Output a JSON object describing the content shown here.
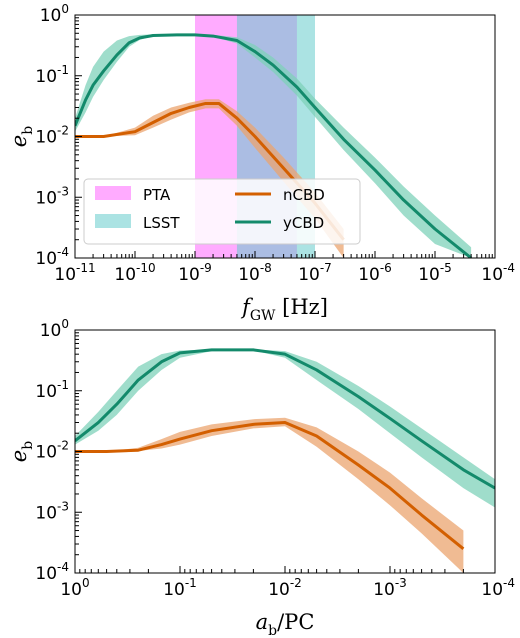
{
  "colors": {
    "nCBD": "#d35f00",
    "nCBD_band": "#eba46f",
    "yCBD": "#138a6b",
    "yCBD_band": "#7fd1b9",
    "PTA": "#ff66ff",
    "LSST": "#66cccc",
    "overlap": "#9fa7e0"
  },
  "chart_data": [
    {
      "type": "line",
      "xscale": "log",
      "yscale": "log",
      "xlabel": "f_GW [Hz]",
      "ylabel": "e_b",
      "xlim": [
        1e-11,
        0.0001
      ],
      "ylim": [
        0.0001,
        1
      ],
      "x_ticks": [
        "10^-11",
        "10^-10",
        "10^-9",
        "10^-8",
        "10^-7",
        "10^-6",
        "10^-5",
        "10^-4"
      ],
      "y_ticks": [
        "10^0",
        "10^-1",
        "10^-2",
        "10^-3",
        "10^-4"
      ],
      "legend": {
        "placement": "lower-left",
        "entries": [
          "PTA",
          "LSST",
          "nCBD",
          "yCBD"
        ]
      },
      "bands": [
        {
          "name": "PTA",
          "x_range": [
            1e-09,
            5e-08
          ]
        },
        {
          "name": "LSST",
          "x_range": [
            5e-09,
            1e-07
          ]
        }
      ],
      "series": [
        {
          "name": "nCBD",
          "x": [
            1e-11,
            3e-11,
            1e-10,
            2e-10,
            4e-10,
            8e-10,
            1.5e-09,
            2.5e-09,
            5e-09,
            1e-08,
            3e-08,
            1e-07,
            3e-07
          ],
          "y": [
            0.01,
            0.01,
            0.012,
            0.017,
            0.024,
            0.03,
            0.035,
            0.035,
            0.02,
            0.01,
            0.003,
            0.0008,
            0.0002
          ],
          "low": [
            0.01,
            0.01,
            0.0105,
            0.014,
            0.019,
            0.025,
            0.029,
            0.029,
            0.015,
            0.0065,
            0.0018,
            0.00045,
            0.0001
          ],
          "high": [
            0.01,
            0.01,
            0.014,
            0.022,
            0.03,
            0.036,
            0.041,
            0.041,
            0.026,
            0.014,
            0.0045,
            0.0012,
            0.0003
          ]
        },
        {
          "name": "yCBD",
          "x": [
            1e-11,
            1.5e-11,
            2e-11,
            3e-11,
            5e-11,
            8e-11,
            1.2e-10,
            2e-10,
            5e-10,
            1e-09,
            2e-09,
            5e-09,
            1e-08,
            2e-08,
            5e-08,
            1e-07,
            3e-07,
            1e-06,
            3e-06,
            1e-05,
            4e-05
          ],
          "y": [
            0.015,
            0.04,
            0.07,
            0.12,
            0.22,
            0.35,
            0.42,
            0.46,
            0.47,
            0.47,
            0.45,
            0.38,
            0.25,
            0.15,
            0.065,
            0.03,
            0.009,
            0.0028,
            0.0009,
            0.0003,
            0.0001
          ],
          "low": [
            0.012,
            0.025,
            0.045,
            0.085,
            0.17,
            0.3,
            0.39,
            0.45,
            0.47,
            0.47,
            0.44,
            0.34,
            0.2,
            0.115,
            0.047,
            0.021,
            0.006,
            0.0017,
            0.0005,
            0.00017,
            0.0001
          ],
          "high": [
            0.02,
            0.07,
            0.14,
            0.25,
            0.38,
            0.45,
            0.47,
            0.48,
            0.48,
            0.48,
            0.47,
            0.43,
            0.32,
            0.2,
            0.09,
            0.042,
            0.014,
            0.0045,
            0.0015,
            0.0005,
            0.00015
          ]
        }
      ]
    },
    {
      "type": "line",
      "xscale": "log",
      "yscale": "log",
      "x_reversed": true,
      "xlabel": "a_b/PC",
      "ylabel": "e_b",
      "xlim": [
        1,
        0.0001
      ],
      "ylim": [
        0.0001,
        1
      ],
      "x_ticks": [
        "10^0",
        "10^-1",
        "10^-2",
        "10^-3",
        "10^-4"
      ],
      "y_ticks": [
        "10^0",
        "10^-1",
        "10^-2",
        "10^-3",
        "10^-4"
      ],
      "series": [
        {
          "name": "nCBD",
          "x": [
            1,
            0.5,
            0.25,
            0.15,
            0.1,
            0.05,
            0.02,
            0.01,
            0.005,
            0.002,
            0.001,
            0.0005,
            0.0002
          ],
          "y": [
            0.01,
            0.01,
            0.0105,
            0.013,
            0.016,
            0.022,
            0.028,
            0.03,
            0.018,
            0.006,
            0.0025,
            0.0009,
            0.00025
          ],
          "low": [
            0.01,
            0.01,
            0.0102,
            0.0112,
            0.013,
            0.018,
            0.024,
            0.026,
            0.012,
            0.0035,
            0.0013,
            0.00045,
            0.0001
          ],
          "high": [
            0.01,
            0.01,
            0.0115,
            0.016,
            0.021,
            0.028,
            0.034,
            0.036,
            0.025,
            0.01,
            0.0045,
            0.0017,
            0.0005
          ]
        },
        {
          "name": "yCBD",
          "x": [
            1,
            0.6,
            0.4,
            0.25,
            0.15,
            0.1,
            0.05,
            0.02,
            0.01,
            0.005,
            0.002,
            0.001,
            0.0005,
            0.0002,
            0.0001
          ],
          "y": [
            0.015,
            0.03,
            0.06,
            0.15,
            0.3,
            0.42,
            0.47,
            0.47,
            0.4,
            0.22,
            0.08,
            0.035,
            0.015,
            0.005,
            0.0025
          ],
          "low": [
            0.013,
            0.022,
            0.04,
            0.1,
            0.22,
            0.35,
            0.45,
            0.46,
            0.35,
            0.15,
            0.05,
            0.02,
            0.008,
            0.0025,
            0.0012
          ],
          "high": [
            0.018,
            0.045,
            0.1,
            0.25,
            0.4,
            0.46,
            0.48,
            0.48,
            0.45,
            0.3,
            0.12,
            0.055,
            0.024,
            0.008,
            0.0035
          ]
        }
      ]
    }
  ]
}
